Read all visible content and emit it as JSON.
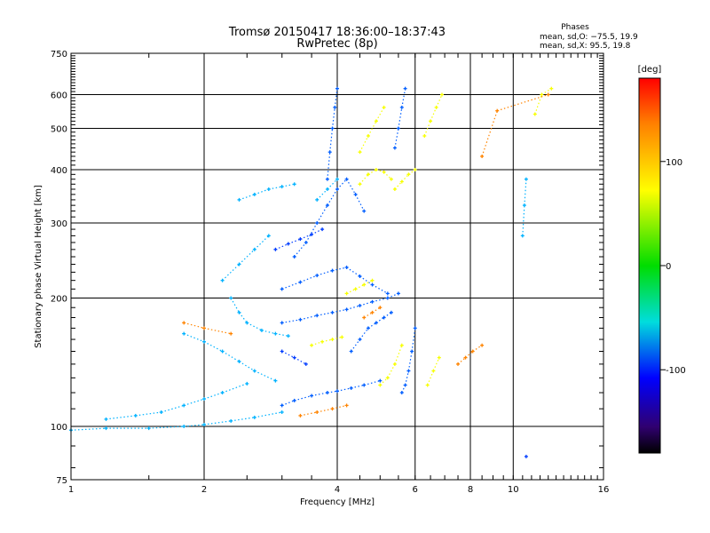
{
  "chart_data": {
    "type": "scatter",
    "title": "Tromsø 20150417 18:36:00–18:37:43",
    "subtitle": "RwPretec (8p)",
    "xlabel": "Frequency [MHz]",
    "ylabel": "Stationary phase Virtual Height [km]",
    "x_scale": "log",
    "y_scale": "log",
    "xlim": [
      1,
      16
    ],
    "ylim": [
      75,
      750
    ],
    "x_ticks": [
      1,
      2,
      4,
      6,
      8,
      10,
      16
    ],
    "x_tick_labels": [
      "1",
      "2",
      "4",
      "6",
      "8",
      "10",
      "16"
    ],
    "y_ticks": [
      75,
      100,
      200,
      300,
      400,
      500,
      600,
      750
    ],
    "y_tick_labels": [
      "75",
      "100",
      "200",
      "300",
      "400",
      "500",
      "600",
      "750"
    ],
    "grid": true,
    "info_box": {
      "heading": "Phases",
      "line1": "mean, sd,O: −75.5, 19.9",
      "line2": "mean, sd,X:  95.5, 19.8"
    },
    "colorbar": {
      "label": "[deg]",
      "range": [
        -180,
        180
      ],
      "ticks": [
        100,
        0,
        -100
      ],
      "tick_labels": [
        "100",
        "0",
        "-100"
      ],
      "colormap": "rainbow"
    },
    "series": [
      {
        "polarization": "O",
        "phase_deg": -100,
        "traces": [
          {
            "x": [
              3.0,
              3.2,
              3.5,
              3.8,
              4.0,
              4.3,
              4.6,
              5.0
            ],
            "y": [
              112,
              115,
              118,
              120,
              121,
              123,
              125,
              128
            ]
          },
          {
            "x": [
              3.0,
              3.3,
              3.6,
              3.9,
              4.2,
              4.5,
              4.8,
              5.2,
              5.5
            ],
            "y": [
              175,
              178,
              182,
              185,
              188,
              192,
              196,
              200,
              205
            ]
          },
          {
            "x": [
              3.0,
              3.3,
              3.6,
              3.9,
              4.2,
              4.5,
              4.8,
              5.2
            ],
            "y": [
              210,
              218,
              226,
              232,
              236,
              225,
              215,
              205
            ]
          },
          {
            "x": [
              3.2,
              3.4,
              3.6,
              3.8,
              4.0,
              4.2,
              4.4,
              4.6
            ],
            "y": [
              250,
              270,
              300,
              330,
              360,
              380,
              350,
              320
            ]
          },
          {
            "x": [
              3.8,
              3.85,
              3.9,
              3.95,
              4.0
            ],
            "y": [
              380,
              440,
              500,
              560,
              620
            ]
          },
          {
            "x": [
              4.3,
              4.5,
              4.7,
              4.9,
              5.1,
              5.3
            ],
            "y": [
              150,
              160,
              170,
              175,
              180,
              185
            ]
          },
          {
            "x": [
              5.4,
              5.5,
              5.6,
              5.7
            ],
            "y": [
              450,
              500,
              560,
              620
            ]
          },
          {
            "x": [
              5.6,
              5.7,
              5.8,
              5.9,
              6.0
            ],
            "y": [
              120,
              125,
              135,
              150,
              170
            ]
          }
        ]
      },
      {
        "polarization": "O",
        "phase_deg": -110,
        "traces": [
          {
            "x": [
              2.9,
              3.1,
              3.3,
              3.5,
              3.7
            ],
            "y": [
              260,
              268,
              275,
              282,
              290
            ]
          },
          {
            "x": [
              3.0,
              3.2,
              3.4
            ],
            "y": [
              150,
              145,
              140
            ]
          },
          {
            "x": [
              10.7
            ],
            "y": [
              85
            ]
          }
        ]
      },
      {
        "polarization": "O",
        "phase_deg": -75,
        "traces": [
          {
            "x": [
              1.0,
              1.2,
              1.5,
              1.8,
              2.0,
              2.3,
              2.6,
              3.0
            ],
            "y": [
              98,
              99,
              99,
              100,
              101,
              103,
              105,
              108
            ]
          },
          {
            "x": [
              1.2,
              1.4,
              1.6,
              1.8,
              2.0,
              2.2,
              2.5
            ],
            "y": [
              104,
              106,
              108,
              112,
              116,
              120,
              126
            ]
          },
          {
            "x": [
              1.8,
              2.0,
              2.2,
              2.4,
              2.6,
              2.9
            ],
            "y": [
              165,
              158,
              150,
              142,
              135,
              128
            ]
          },
          {
            "x": [
              2.3,
              2.4,
              2.5,
              2.7,
              2.9,
              3.1
            ],
            "y": [
              200,
              185,
              175,
              168,
              165,
              163
            ]
          },
          {
            "x": [
              2.2,
              2.4,
              2.6,
              2.8
            ],
            "y": [
              220,
              240,
              260,
              280
            ]
          },
          {
            "x": [
              2.4,
              2.6,
              2.8,
              3.0,
              3.2
            ],
            "y": [
              340,
              350,
              360,
              365,
              370
            ]
          },
          {
            "x": [
              3.6,
              3.8,
              4.0
            ],
            "y": [
              340,
              360,
              380
            ]
          },
          {
            "x": [
              10.5,
              10.6,
              10.7
            ],
            "y": [
              280,
              330,
              380
            ]
          }
        ]
      },
      {
        "polarization": "X",
        "phase_deg": 100,
        "traces": [
          {
            "x": [
              4.5,
              4.7,
              4.9,
              5.1,
              5.3
            ],
            "y": [
              370,
              390,
              400,
              395,
              380
            ]
          },
          {
            "x": [
              5.4,
              5.6,
              5.8,
              6.0
            ],
            "y": [
              360,
              375,
              390,
              400
            ]
          },
          {
            "x": [
              4.5,
              4.7,
              4.9,
              5.1
            ],
            "y": [
              440,
              480,
              520,
              560
            ]
          },
          {
            "x": [
              3.5,
              3.7,
              3.9,
              4.1
            ],
            "y": [
              155,
              158,
              160,
              162
            ]
          },
          {
            "x": [
              4.2,
              4.4,
              4.6,
              4.8
            ],
            "y": [
              205,
              210,
              215,
              220
            ]
          },
          {
            "x": [
              5.0,
              5.2,
              5.4,
              5.6
            ],
            "y": [
              125,
              130,
              140,
              155
            ]
          },
          {
            "x": [
              6.3,
              6.5,
              6.7,
              6.9
            ],
            "y": [
              480,
              520,
              560,
              600
            ]
          },
          {
            "x": [
              6.4,
              6.6,
              6.8
            ],
            "y": [
              125,
              135,
              145
            ]
          },
          {
            "x": [
              11.2,
              11.6,
              12.2
            ],
            "y": [
              540,
              600,
              620
            ]
          }
        ]
      },
      {
        "polarization": "X",
        "phase_deg": 140,
        "traces": [
          {
            "x": [
              3.3,
              3.6,
              3.9,
              4.2
            ],
            "y": [
              106,
              108,
              110,
              112
            ]
          },
          {
            "x": [
              1.8,
              2.0,
              2.3
            ],
            "y": [
              175,
              170,
              165
            ]
          },
          {
            "x": [
              7.5,
              7.8,
              8.1,
              8.5
            ],
            "y": [
              140,
              145,
              150,
              155
            ]
          },
          {
            "x": [
              8.5,
              9.2,
              12.0
            ],
            "y": [
              430,
              550,
              600
            ]
          },
          {
            "x": [
              4.6,
              4.8,
              5.0
            ],
            "y": [
              180,
              185,
              190
            ]
          }
        ]
      }
    ]
  }
}
